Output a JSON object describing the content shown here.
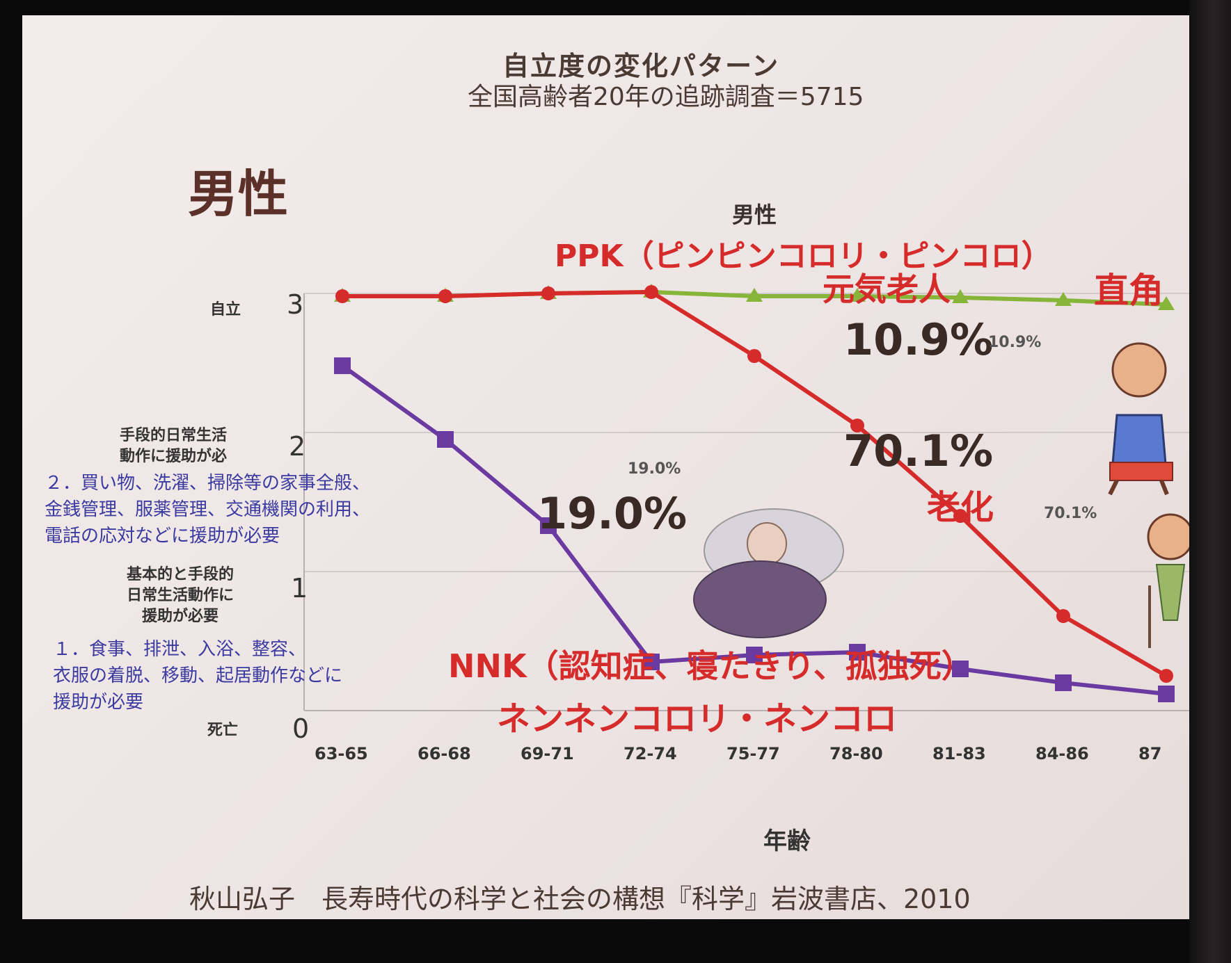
{
  "slide": {
    "title": "自立度の変化パターン",
    "subtitle": "全国高齢者20年の追跡調査＝5715",
    "gender_heading": "男性",
    "chart_title": "男性",
    "ppk_label": "PPK（ピンピンコロリ・ピンコロ）",
    "genki_label": "元気老人",
    "chokkaku_label": "直角",
    "rouka_label": "老化",
    "nnk_label": "NNK（認知症、寝たきり、孤独死）",
    "nenkoro_label": "ネンネンコロリ・ネンコロ",
    "pct_10_9_big": "10.9%",
    "pct_10_9_small": "10.9%",
    "pct_70_1_big": "70.1%",
    "pct_70_1_small": "70.1%",
    "pct_19_0_big": "19.0%",
    "pct_19_0_small": "19.0%",
    "level_3": "自立",
    "level_0": "死亡",
    "level_2_desc": "手段的日常生活\n動作に援助が必",
    "level_2_detail": "２．買い物、洗濯、掃除等の家事全般、\n金銭管理、服薬管理、交通機関の利用、\n電話の応対などに援助が必要",
    "level_1_desc": "基本的と手段的\n日常生活動作に\n援助が必要",
    "level_1_detail": "１．食事、排泄、入浴、整容、\n衣服の着脱、移動、起居動作などに\n援助が必要",
    "xlabel": "年齢",
    "source": "秋山弘子　長寿時代の科学と社会の構想『科学』岩波書店、2010",
    "colors": {
      "green": "#86b53a",
      "red": "#d52b2b",
      "purple": "#6a3aa0"
    }
  },
  "chart_data": {
    "type": "line",
    "title": "男性",
    "xlabel": "年齢",
    "ylabel": "",
    "categories": [
      "63-65",
      "66-68",
      "69-71",
      "72-74",
      "75-77",
      "78-80",
      "81-83",
      "84-86",
      "87"
    ],
    "y_ticks": [
      0,
      1,
      2,
      3
    ],
    "ylim": [
      0,
      3
    ],
    "grid": true,
    "series": [
      {
        "name": "",
        "color": "#86b53a",
        "values": [
          2.98,
          2.98,
          3.0,
          3.01,
          2.98,
          2.98,
          2.97,
          2.95,
          2.92
        ]
      },
      {
        "name": "",
        "color": "#d52b2b",
        "values": [
          2.98,
          2.98,
          3.0,
          3.01,
          2.55,
          2.05,
          1.4,
          0.68,
          0.25
        ]
      },
      {
        "name": "",
        "color": "#6a3aa0",
        "values": [
          2.48,
          1.95,
          1.33,
          0.35,
          0.4,
          0.42,
          0.3,
          0.2,
          0.12
        ]
      }
    ]
  }
}
